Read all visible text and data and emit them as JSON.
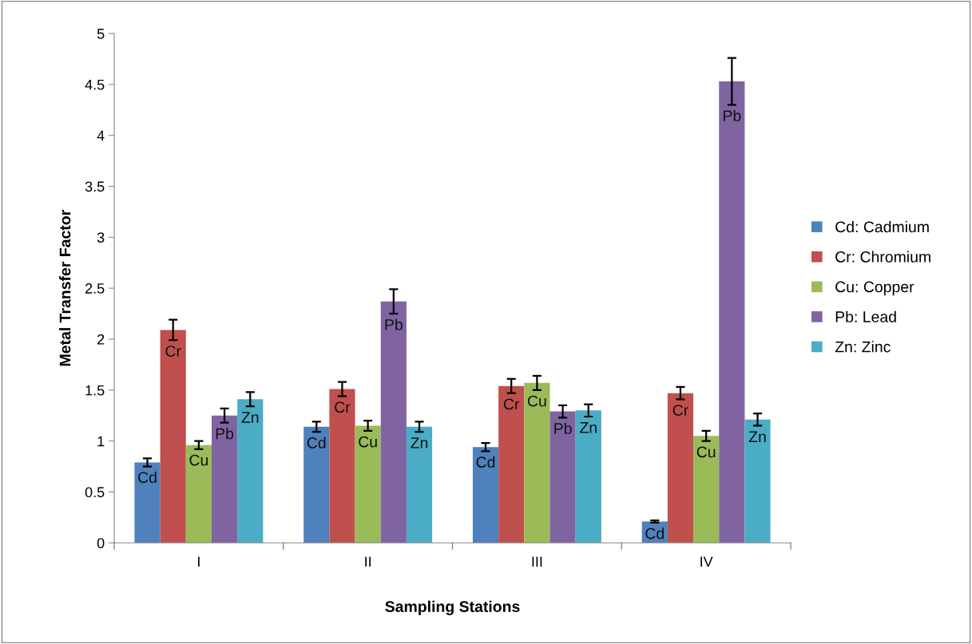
{
  "chart_data": {
    "type": "bar",
    "xlabel": "Sampling Stations",
    "ylabel": "Metal Transfer Factor",
    "categories": [
      "I",
      "II",
      "III",
      "IV"
    ],
    "series": [
      {
        "name": "Cd: Cadmium",
        "color": "#4f81bd",
        "values": [
          0.79,
          1.14,
          0.94,
          0.21
        ],
        "errors": [
          0.04,
          0.05,
          0.04,
          0.01
        ],
        "value_labels": [
          "Cd",
          "Cd",
          "Cd",
          "Cd"
        ]
      },
      {
        "name": "Cr: Chromium",
        "color": "#c0504d",
        "values": [
          2.09,
          1.51,
          1.54,
          1.47
        ],
        "errors": [
          0.1,
          0.07,
          0.07,
          0.06
        ],
        "value_labels": [
          "Cr",
          "Cr",
          "Cr",
          "Cr"
        ]
      },
      {
        "name": "Cu: Copper",
        "color": "#9bbb59",
        "values": [
          0.96,
          1.15,
          1.57,
          1.05
        ],
        "errors": [
          0.04,
          0.05,
          0.07,
          0.05
        ],
        "value_labels": [
          "Cu",
          "Cu",
          "Cu",
          "Cu"
        ]
      },
      {
        "name": "Pb: Lead",
        "color": "#8064a2",
        "values": [
          1.25,
          2.37,
          1.29,
          4.53
        ],
        "errors": [
          0.07,
          0.12,
          0.06,
          0.23
        ],
        "value_labels": [
          "Pb",
          "Pb",
          "Pb",
          "Pb"
        ]
      },
      {
        "name": "Zn: Zinc",
        "color": "#4bacc6",
        "values": [
          1.41,
          1.14,
          1.3,
          1.21
        ],
        "errors": [
          0.07,
          0.05,
          0.06,
          0.06
        ],
        "value_labels": [
          "Zn",
          "Zn",
          "Zn",
          "Zn"
        ]
      }
    ],
    "ylim": [
      0,
      5
    ],
    "yticks": [
      0,
      0.5,
      1,
      1.5,
      2,
      2.5,
      3,
      3.5,
      4,
      4.5,
      5
    ],
    "grid": false,
    "legend": "right"
  }
}
